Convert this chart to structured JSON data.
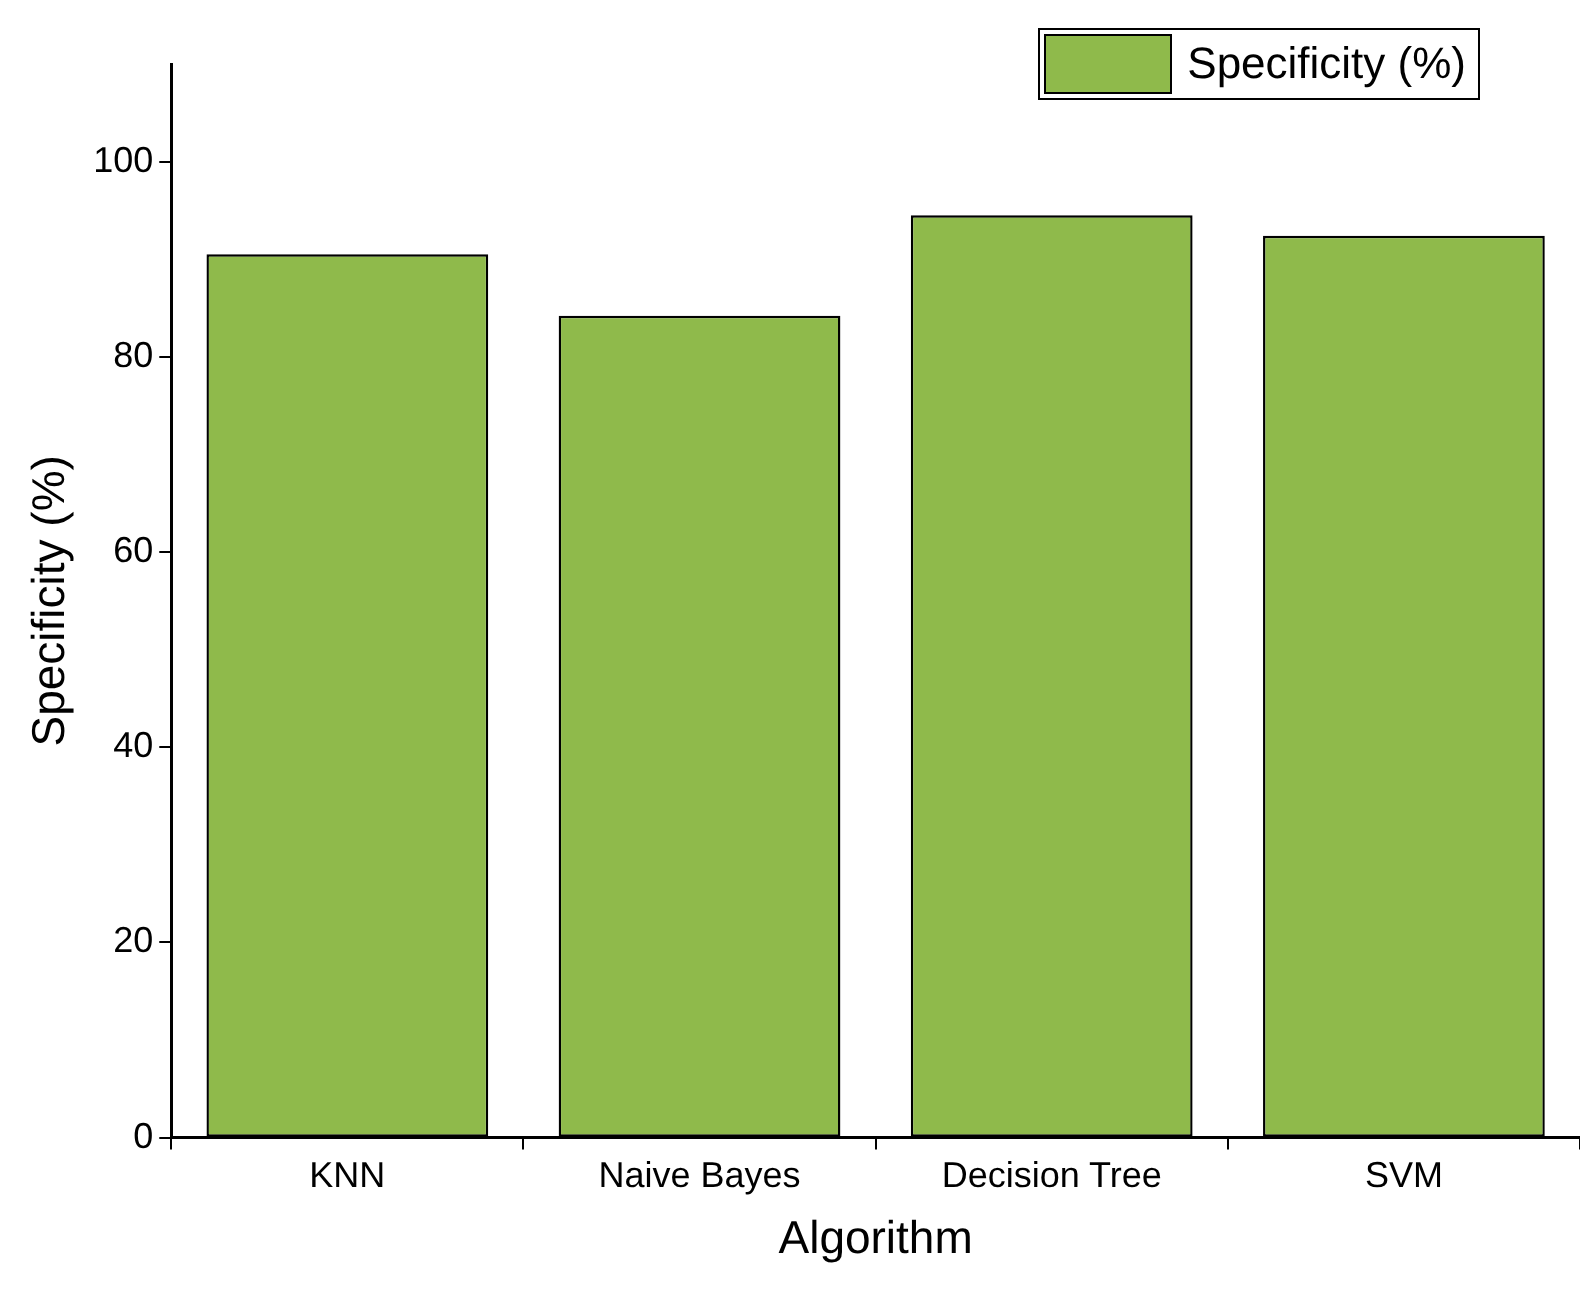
{
  "chart_data": {
    "type": "bar",
    "xlabel": "Algorithm",
    "ylabel": "Specificity (%)",
    "categories": [
      "KNN",
      "Naive Bayes",
      "Decision Tree",
      "SVM"
    ],
    "series": [
      {
        "name": "Specificity (%)",
        "color": "#8fba4b",
        "values": [
          90.5,
          84.2,
          94.5,
          92.4
        ]
      }
    ],
    "ylim": [
      0,
      110
    ],
    "yticks": [
      0,
      20,
      40,
      60,
      80,
      100
    ],
    "grid": false,
    "legend": "top right"
  }
}
